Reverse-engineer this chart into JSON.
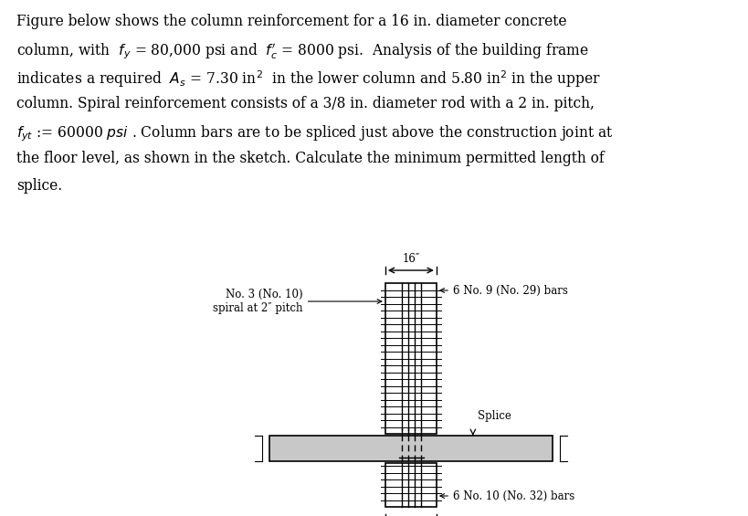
{
  "bg": "#ffffff",
  "text_lines": [
    [
      "Figure below shows the column reinforcement for a 16 in. diameter concrete",
      false
    ],
    [
      "column, with  $f_y$ = 80,000 psi and  $f_c^{\\prime}$ = 8000 psi.  Analysis of the building frame",
      false
    ],
    [
      "indicates a required  $A_s$ = 7.30 in$^2$  in the lower column and 5.80 in$^2$ in the upper",
      false
    ],
    [
      "column. Spiral reinforcement consists of a 3/8 in. diameter rod with a 2 in. pitch,",
      false
    ],
    [
      "$f_{yt}$ := 60000 $psi$ . Column bars are to be spliced just above the construction joint at",
      false
    ],
    [
      "the floor level, as shown in the sketch. Calculate the minimum permitted length of",
      false
    ],
    [
      "splice.",
      false
    ]
  ],
  "label_spiral": "No. 3 (No. 10)\nspiral at 2″ pitch",
  "label_upper_bars": "6 No. 9 (No. 29) bars",
  "label_lower_bars": "6 No. 10 (No. 32) bars",
  "label_splice": "Splice",
  "dim_label": "16″",
  "slab_color": "#c8c8c8"
}
